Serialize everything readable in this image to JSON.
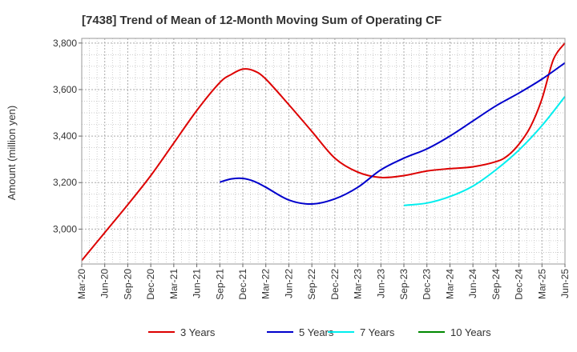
{
  "chart_data": {
    "type": "line",
    "title": "[7438]  Trend of Mean of 12-Month Moving Sum of Operating CF",
    "ylabel": "Amount (million yen)",
    "xlabel": "",
    "ylim": [
      2850,
      3820
    ],
    "yticks": [
      3000,
      3200,
      3400,
      3600,
      3800
    ],
    "ytick_labels": [
      "3,000",
      "3,200",
      "3,400",
      "3,600",
      "3,800"
    ],
    "x_categories": [
      "Mar-20",
      "Jun-20",
      "Sep-20",
      "Dec-20",
      "Mar-21",
      "Jun-21",
      "Sep-21",
      "Dec-21",
      "Mar-22",
      "Jun-22",
      "Sep-22",
      "Dec-22",
      "Mar-23",
      "Jun-23",
      "Sep-23",
      "Dec-23",
      "Mar-24",
      "Jun-24",
      "Sep-24",
      "Dec-24",
      "Mar-25",
      "Jun-25"
    ],
    "grid": true,
    "legend_position": "bottom",
    "series": [
      {
        "name": "3 Years",
        "color": "#dd0000",
        "points": [
          [
            0,
            2865
          ],
          [
            1,
            2985
          ],
          [
            2,
            3105
          ],
          [
            3,
            3230
          ],
          [
            4,
            3370
          ],
          [
            5,
            3510
          ],
          [
            6,
            3630
          ],
          [
            6.5,
            3665
          ],
          [
            7,
            3688
          ],
          [
            7.5,
            3680
          ],
          [
            8,
            3645
          ],
          [
            9,
            3535
          ],
          [
            10,
            3420
          ],
          [
            11,
            3305
          ],
          [
            12,
            3245
          ],
          [
            13,
            3222
          ],
          [
            14,
            3230
          ],
          [
            15,
            3250
          ],
          [
            16,
            3260
          ],
          [
            17,
            3268
          ],
          [
            18,
            3290
          ],
          [
            18.5,
            3315
          ],
          [
            19,
            3365
          ],
          [
            19.5,
            3440
          ],
          [
            20,
            3560
          ],
          [
            20.5,
            3730
          ],
          [
            21,
            3800
          ]
        ]
      },
      {
        "name": "5 Years",
        "color": "#0000cc",
        "points": [
          [
            6,
            3202
          ],
          [
            6.5,
            3216
          ],
          [
            7,
            3218
          ],
          [
            7.5,
            3205
          ],
          [
            8,
            3180
          ],
          [
            9,
            3125
          ],
          [
            10,
            3108
          ],
          [
            11,
            3130
          ],
          [
            12,
            3180
          ],
          [
            13,
            3255
          ],
          [
            14,
            3305
          ],
          [
            15,
            3345
          ],
          [
            16,
            3400
          ],
          [
            17,
            3465
          ],
          [
            18,
            3530
          ],
          [
            19,
            3585
          ],
          [
            20,
            3645
          ],
          [
            21,
            3715
          ]
        ]
      },
      {
        "name": "7 Years",
        "color": "#00eeee",
        "points": [
          [
            14,
            3102
          ],
          [
            15,
            3112
          ],
          [
            16,
            3140
          ],
          [
            17,
            3185
          ],
          [
            18,
            3255
          ],
          [
            19,
            3340
          ],
          [
            20,
            3445
          ],
          [
            21,
            3570
          ]
        ]
      },
      {
        "name": "10 Years",
        "color": "#008800",
        "points": []
      }
    ]
  }
}
